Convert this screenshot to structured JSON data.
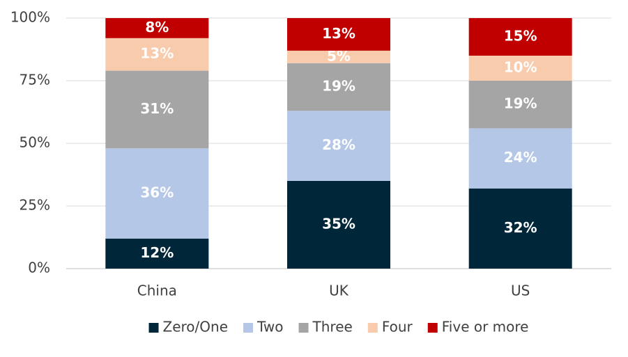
{
  "chart_data": {
    "type": "stacked-bar",
    "categories": [
      "China",
      "UK",
      "US"
    ],
    "series": [
      {
        "name": "Zero/One",
        "color": "#002639",
        "values": [
          12,
          35,
          32
        ],
        "value_labels": [
          "12%",
          "35%",
          "32%"
        ]
      },
      {
        "name": "Two",
        "color": "#b4c7e7",
        "values": [
          36,
          28,
          24
        ],
        "value_labels": [
          "36%",
          "28%",
          "24%"
        ]
      },
      {
        "name": "Three",
        "color": "#a5a5a5",
        "values": [
          31,
          19,
          19
        ],
        "value_labels": [
          "31%",
          "19%",
          "19%"
        ]
      },
      {
        "name": "Four",
        "color": "#f8cbad",
        "values": [
          13,
          5,
          10
        ],
        "value_labels": [
          "13%",
          "5%",
          "10%"
        ]
      },
      {
        "name": "Five or more",
        "color": "#c00000",
        "values": [
          8,
          13,
          15
        ],
        "value_labels": [
          "8%",
          "13%",
          "15%"
        ]
      }
    ],
    "ylim": [
      0,
      100
    ],
    "yticks": [
      {
        "value": 0,
        "label": "0%"
      },
      {
        "value": 25,
        "label": "25%"
      },
      {
        "value": 50,
        "label": "50%"
      },
      {
        "value": 75,
        "label": "75%"
      },
      {
        "value": 100,
        "label": "100%"
      }
    ],
    "grid": true,
    "legend": "bottom"
  }
}
